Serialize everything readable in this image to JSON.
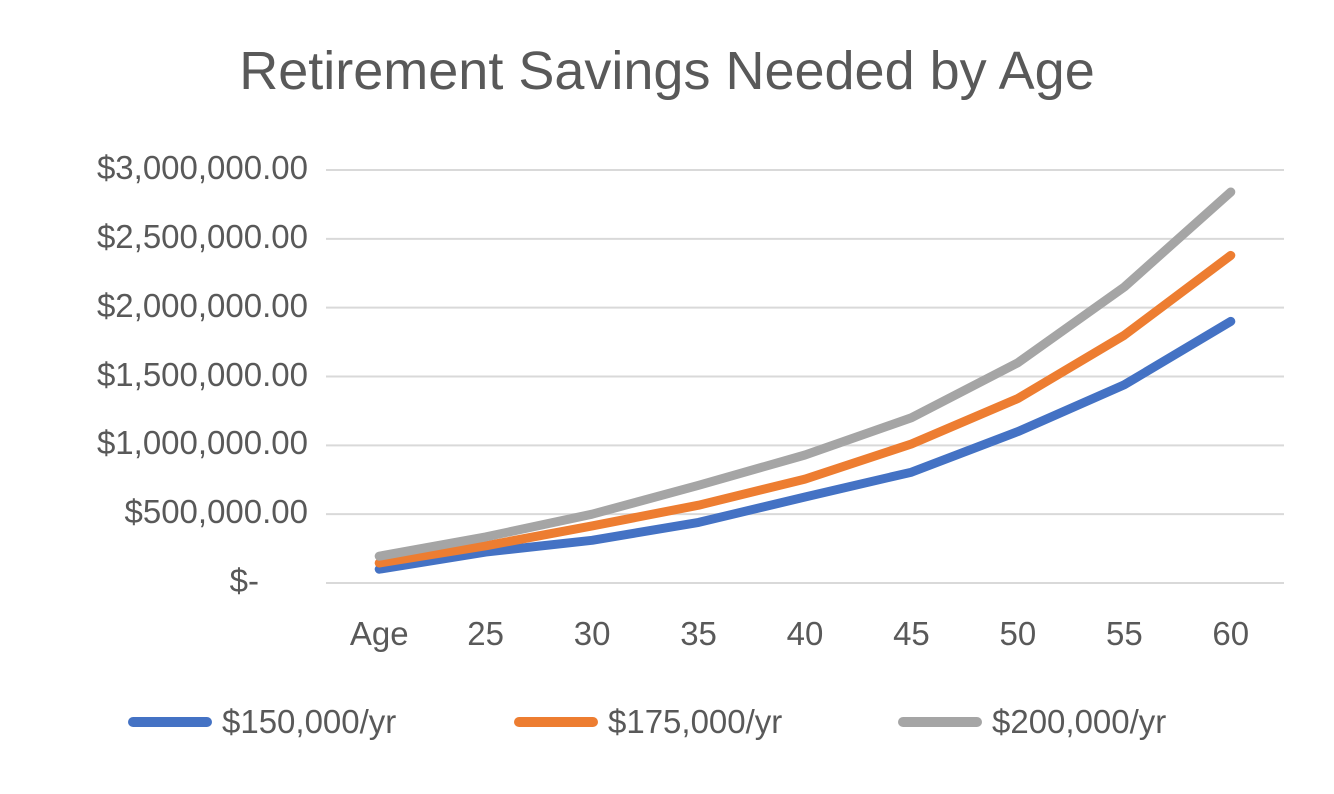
{
  "chart_data": {
    "type": "line",
    "title": "Retirement Savings Needed by Age",
    "xlabel": "",
    "ylabel": "",
    "categories": [
      "Age",
      "25",
      "30",
      "35",
      "40",
      "45",
      "50",
      "55",
      "60"
    ],
    "series": [
      {
        "name": "$150,000/yr",
        "color": "#4472C4",
        "values": [
          100000,
          225000,
          310000,
          440000,
          625000,
          805000,
          1100000,
          1440000,
          1900000
        ]
      },
      {
        "name": "$175,000/yr",
        "color": "#ED7D31",
        "values": [
          145000,
          270000,
          415000,
          565000,
          755000,
          1010000,
          1340000,
          1800000,
          2380000
        ]
      },
      {
        "name": "$200,000/yr",
        "color": "#A5A5A5",
        "values": [
          195000,
          335000,
          500000,
          710000,
          930000,
          1200000,
          1600000,
          2150000,
          2840000
        ]
      }
    ],
    "ylim": [
      0,
      3000000
    ],
    "yticks": [
      0,
      500000,
      1000000,
      1500000,
      2000000,
      2500000,
      3000000
    ],
    "ytick_labels": [
      "$-",
      "$500,000.00",
      "$1,000,000.00",
      "$1,500,000.00",
      "$2,000,000.00",
      "$2,500,000.00",
      "$3,000,000.00"
    ],
    "grid": true,
    "legend_position": "bottom"
  },
  "title": "Retirement Savings Needed by Age",
  "legend": [
    {
      "label": "$150,000/yr",
      "color": "#4472C4"
    },
    {
      "label": "$175,000/yr",
      "color": "#ED7D31"
    },
    {
      "label": "$200,000/yr",
      "color": "#A5A5A5"
    }
  ]
}
